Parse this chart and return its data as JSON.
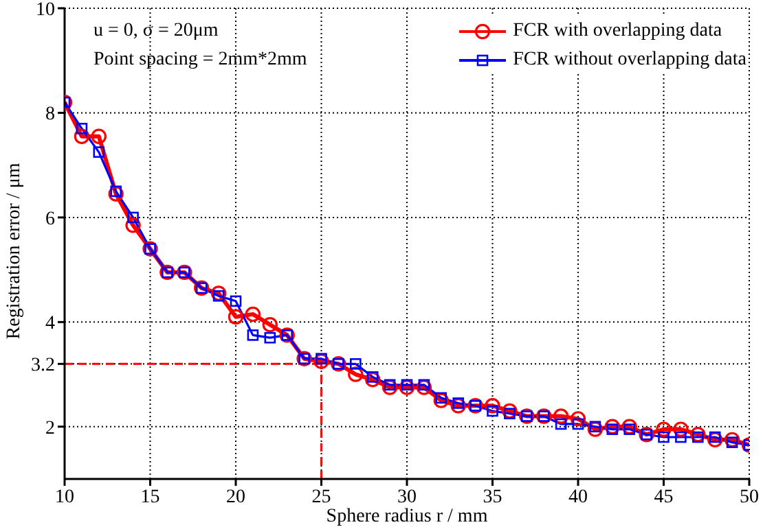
{
  "chart_data": {
    "type": "line",
    "xlabel": "Sphere radius r / mm",
    "ylabel": "Registration error / μm",
    "annotations": [
      "u = 0, σ = 20μm",
      "Point spacing = 2mm*2mm"
    ],
    "x": [
      10,
      11,
      12,
      13,
      14,
      15,
      16,
      17,
      18,
      19,
      20,
      21,
      22,
      23,
      24,
      25,
      26,
      27,
      28,
      29,
      30,
      31,
      32,
      33,
      34,
      35,
      36,
      37,
      38,
      39,
      40,
      41,
      42,
      43,
      44,
      45,
      46,
      47,
      48,
      49,
      50
    ],
    "series": [
      {
        "name": "FCR with overlapping data",
        "color": "#ff0000",
        "marker": "circle",
        "values": [
          8.2,
          7.55,
          7.55,
          6.45,
          5.85,
          5.4,
          4.95,
          4.95,
          4.65,
          4.55,
          4.1,
          4.15,
          3.95,
          3.75,
          3.3,
          3.25,
          3.2,
          3.0,
          2.9,
          2.75,
          2.75,
          2.75,
          2.5,
          2.4,
          2.4,
          2.4,
          2.3,
          2.2,
          2.2,
          2.2,
          2.15,
          1.95,
          2.0,
          2.0,
          1.85,
          1.95,
          1.95,
          1.85,
          1.75,
          1.75,
          1.65
        ]
      },
      {
        "name": "FCR without overlapping data",
        "color": "#0000ff",
        "marker": "square",
        "values": [
          8.2,
          7.7,
          7.25,
          6.5,
          6.0,
          5.4,
          4.95,
          4.95,
          4.65,
          4.5,
          4.4,
          3.75,
          3.7,
          3.75,
          3.3,
          3.3,
          3.2,
          3.2,
          2.95,
          2.8,
          2.8,
          2.8,
          2.55,
          2.45,
          2.4,
          2.3,
          2.25,
          2.2,
          2.2,
          2.05,
          2.05,
          2.0,
          1.95,
          1.95,
          1.85,
          1.8,
          1.8,
          1.8,
          1.8,
          1.7,
          1.65
        ]
      }
    ],
    "xlim": [
      10,
      50
    ],
    "xticks": [
      10,
      15,
      20,
      25,
      30,
      35,
      40,
      45,
      50
    ],
    "ylim": [
      1,
      10
    ],
    "yticks": [
      2,
      3.2,
      4,
      6,
      8,
      10
    ],
    "ref_lines": [
      {
        "axis": "y",
        "value": 3.2,
        "color": "#ff0000",
        "line_style": "dashed"
      },
      {
        "axis": "x",
        "value": 25,
        "color": "#ff0000",
        "line_style": "dashed"
      }
    ],
    "grid": true,
    "legend": "top right",
    "line_style": "solid"
  }
}
